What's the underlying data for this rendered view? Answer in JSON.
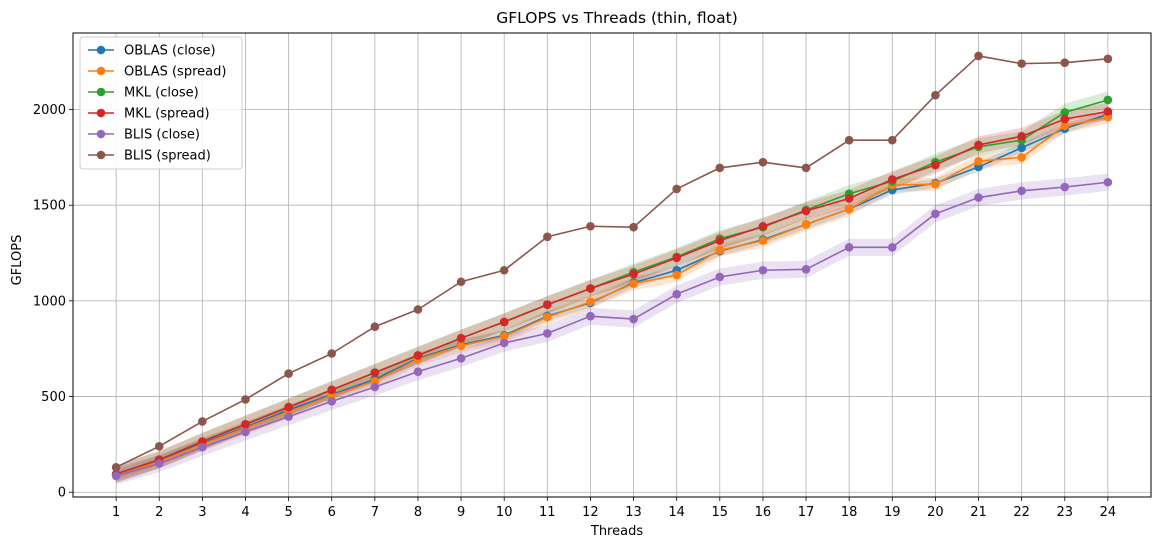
{
  "chart_data": {
    "type": "line",
    "title": "GFLOPS vs Threads (thin, float)",
    "xlabel": "Threads",
    "ylabel": "GFLOPS",
    "x": [
      1,
      2,
      3,
      4,
      5,
      6,
      7,
      8,
      9,
      10,
      11,
      12,
      13,
      14,
      15,
      16,
      17,
      18,
      19,
      20,
      21,
      22,
      23,
      24
    ],
    "xlim": [
      0,
      25
    ],
    "ylim": [
      -25,
      2400
    ],
    "yticks": [
      0,
      500,
      1000,
      1500,
      2000
    ],
    "grid": true,
    "legend_position": "top-left",
    "series": [
      {
        "name": "OBLAS (close)",
        "color": "#1f77b4",
        "values": [
          90,
          165,
          255,
          340,
          430,
          510,
          590,
          700,
          770,
          820,
          920,
          990,
          1095,
          1160,
          1260,
          1320,
          1400,
          1480,
          1580,
          1615,
          1700,
          1800,
          1900,
          1975
        ],
        "band": 25
      },
      {
        "name": "OBLAS (spread)",
        "color": "#ff7f0e",
        "values": [
          90,
          160,
          250,
          335,
          420,
          505,
          580,
          695,
          765,
          815,
          915,
          995,
          1090,
          1135,
          1265,
          1315,
          1400,
          1480,
          1605,
          1610,
          1730,
          1750,
          1915,
          1960
        ],
        "band": 35
      },
      {
        "name": "MKL (close)",
        "color": "#2ca02c",
        "values": [
          95,
          170,
          265,
          355,
          445,
          535,
          625,
          715,
          805,
          890,
          980,
          1065,
          1150,
          1230,
          1325,
          1385,
          1475,
          1560,
          1625,
          1725,
          1805,
          1840,
          1985,
          2050
        ],
        "band": 45
      },
      {
        "name": "MKL (spread)",
        "color": "#d62728",
        "values": [
          95,
          170,
          265,
          355,
          445,
          535,
          625,
          715,
          805,
          890,
          980,
          1065,
          1140,
          1225,
          1315,
          1390,
          1470,
          1535,
          1635,
          1710,
          1815,
          1860,
          1950,
          1990
        ],
        "band": 45
      },
      {
        "name": "BLIS (close)",
        "color": "#9467bd",
        "values": [
          85,
          150,
          235,
          315,
          395,
          475,
          550,
          630,
          700,
          780,
          830,
          920,
          905,
          1035,
          1125,
          1160,
          1165,
          1280,
          1280,
          1455,
          1540,
          1575,
          1595,
          1620
        ],
        "band": 45
      },
      {
        "name": "BLIS (spread)",
        "color": "#8c564b",
        "values": [
          130,
          240,
          370,
          485,
          620,
          725,
          865,
          955,
          1100,
          1160,
          1335,
          1390,
          1385,
          1585,
          1695,
          1725,
          1695,
          1840,
          1840,
          2075,
          2280,
          2240,
          2245,
          2265
        ],
        "band": 0
      }
    ]
  }
}
